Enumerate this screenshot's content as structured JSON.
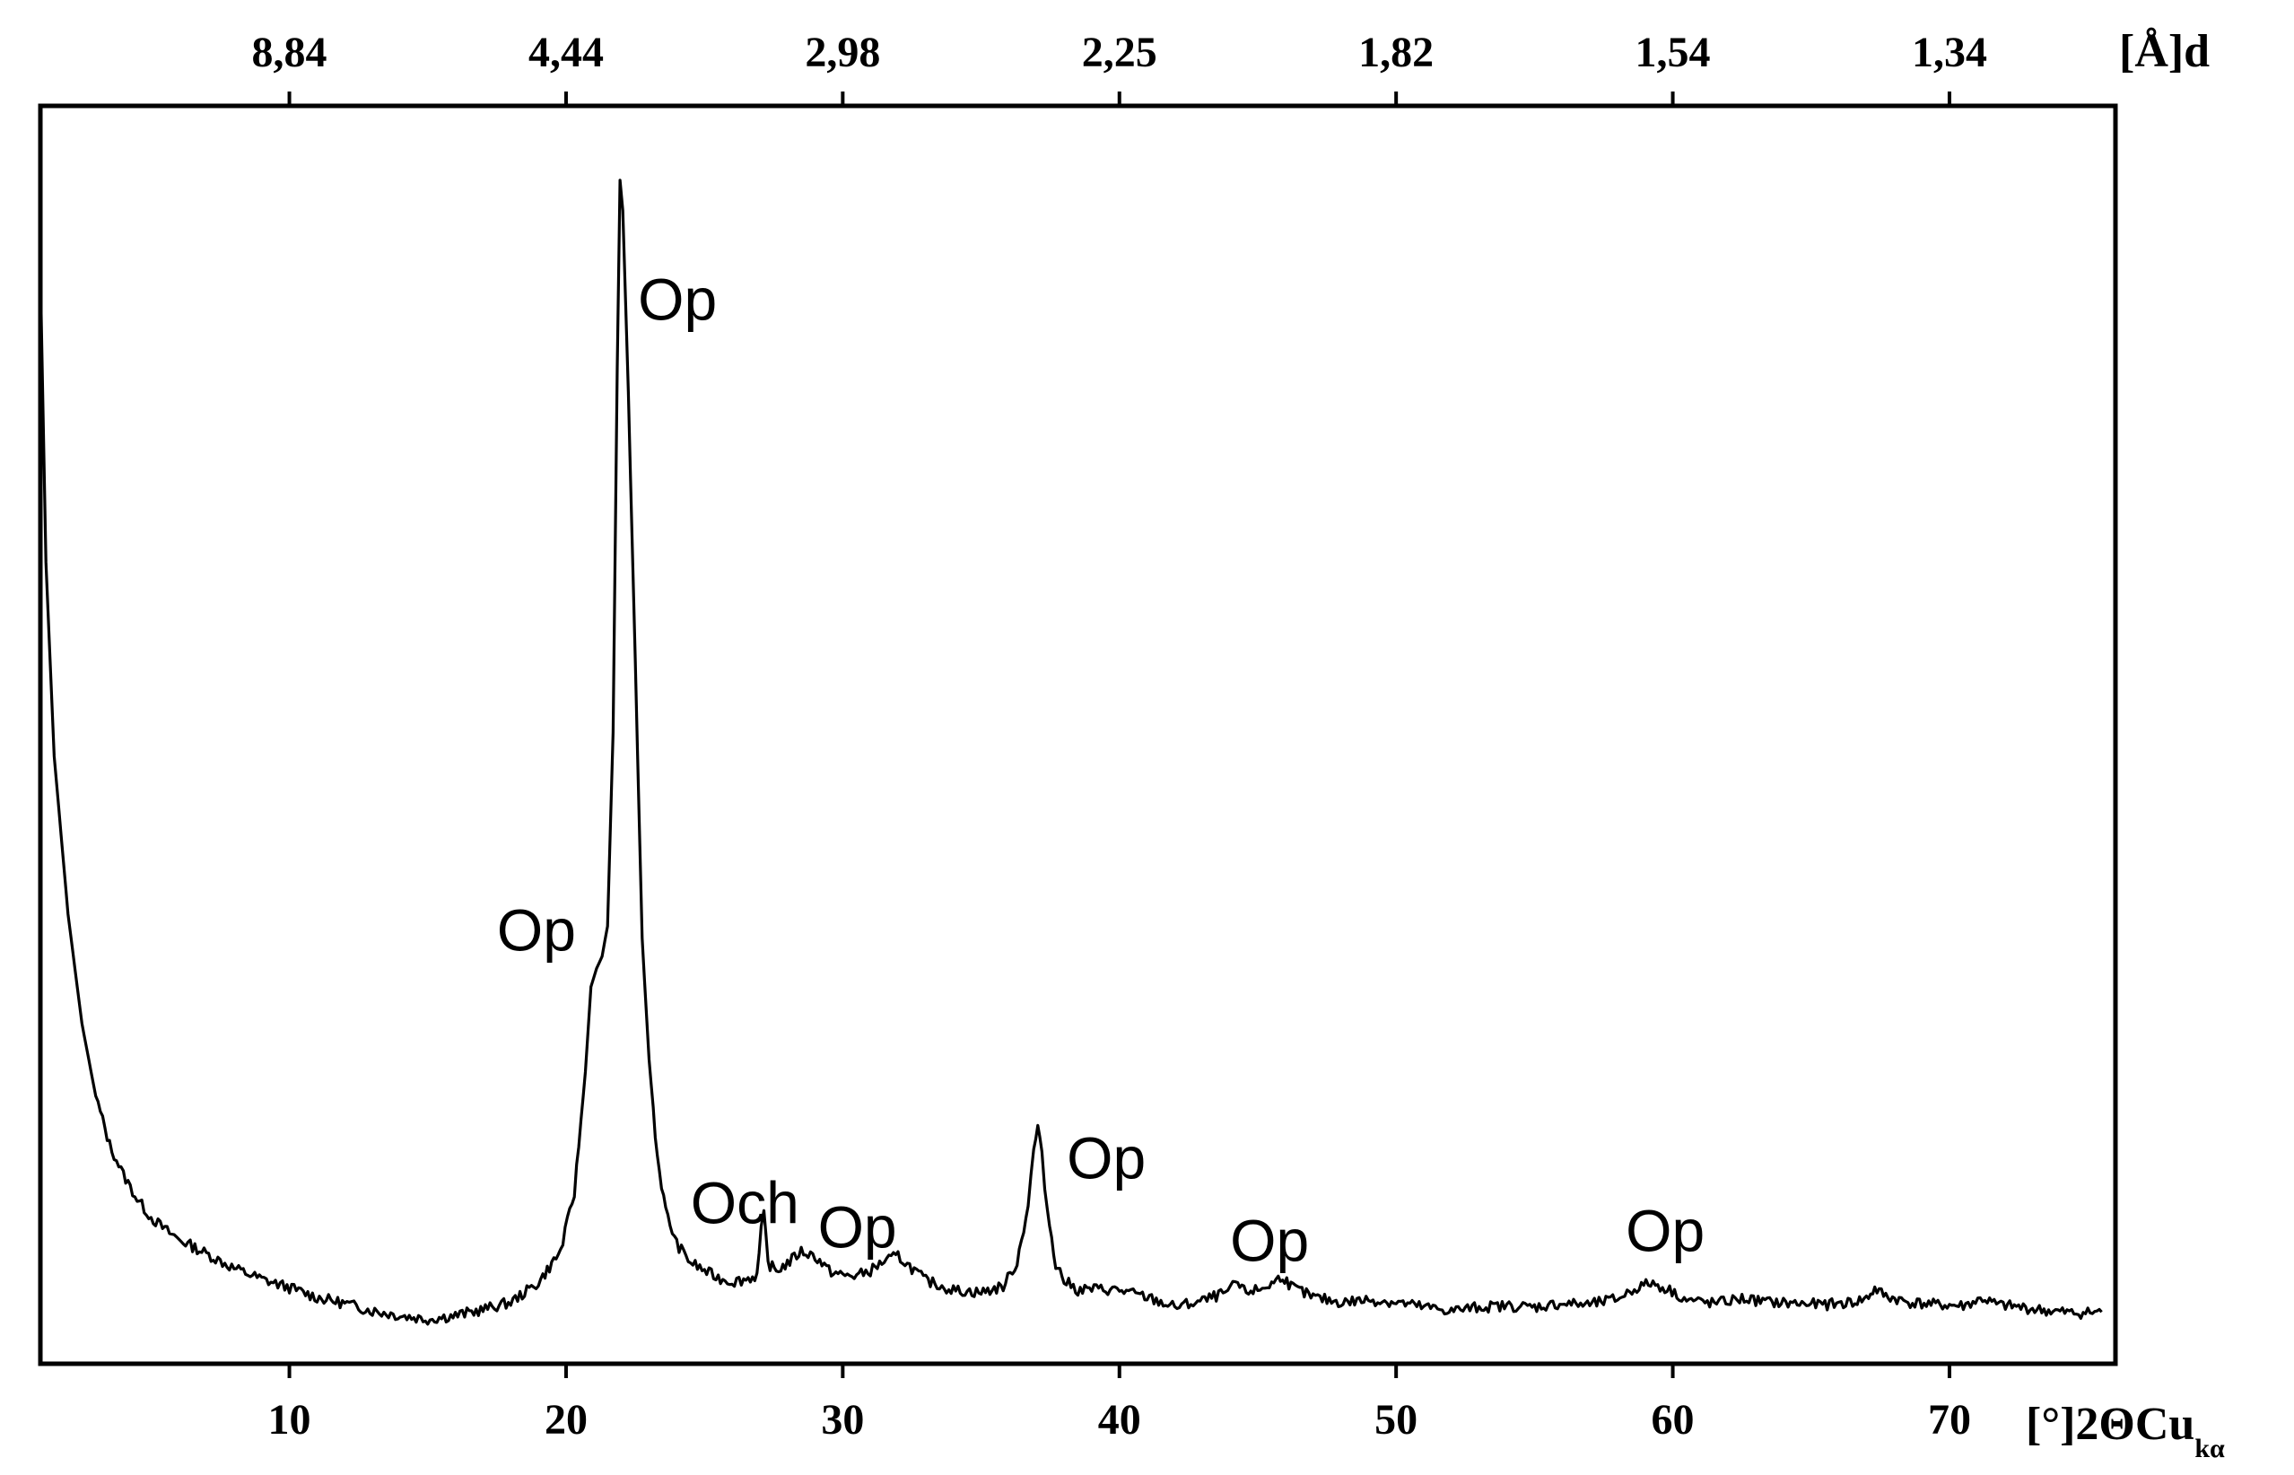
{
  "chart_data": {
    "type": "line",
    "xlabel": "[°]2ΘCu",
    "xlabel_sub": "kα",
    "x2label": "[Å]d",
    "xlim": [
      1,
      76
    ],
    "ylim": [
      0,
      100
    ],
    "x_ticks": [
      10,
      20,
      30,
      40,
      50,
      60,
      70
    ],
    "x_tick_labels": [
      "10",
      "20",
      "30",
      "40",
      "50",
      "60",
      "70"
    ],
    "top_ticks": [
      {
        "x": 10,
        "label": "8,84"
      },
      {
        "x": 20,
        "label": "4,44"
      },
      {
        "x": 30,
        "label": "2,98"
      },
      {
        "x": 40,
        "label": "2,25"
      },
      {
        "x": 50,
        "label": "1,82"
      },
      {
        "x": 60,
        "label": "1,54"
      },
      {
        "x": 70,
        "label": "1,34"
      }
    ],
    "y_ticks_shown": false,
    "grid": false,
    "legend": "none",
    "series": [
      {
        "color": "#000000",
        "points": [
          [
            1.0,
            88
          ],
          [
            1.2,
            64
          ],
          [
            1.5,
            48
          ],
          [
            2.0,
            35
          ],
          [
            2.5,
            26
          ],
          [
            3.0,
            20
          ],
          [
            3.5,
            16
          ],
          [
            4.0,
            13.5
          ],
          [
            4.5,
            11.5
          ],
          [
            5.0,
            10
          ],
          [
            5.5,
            9
          ],
          [
            6.0,
            8.2
          ],
          [
            7.0,
            7
          ],
          [
            8.0,
            5.8
          ],
          [
            9.0,
            4.9
          ],
          [
            10.0,
            4.2
          ],
          [
            11.0,
            3.4
          ],
          [
            12.0,
            2.9
          ],
          [
            13.0,
            2.3
          ],
          [
            14.0,
            1.9
          ],
          [
            15.0,
            1.6
          ],
          [
            16.0,
            1.9
          ],
          [
            17.0,
            2.4
          ],
          [
            18.0,
            3.0
          ],
          [
            19.0,
            4.6
          ],
          [
            19.8,
            7.2
          ],
          [
            20.3,
            12
          ],
          [
            20.7,
            22
          ],
          [
            20.9,
            29
          ],
          [
            21.1,
            30.5
          ],
          [
            21.3,
            31.5
          ],
          [
            21.5,
            34
          ],
          [
            21.7,
            50
          ],
          [
            21.85,
            80
          ],
          [
            21.95,
            95.5
          ],
          [
            22.05,
            93
          ],
          [
            22.25,
            78
          ],
          [
            22.5,
            56
          ],
          [
            22.75,
            33
          ],
          [
            23.0,
            23
          ],
          [
            23.3,
            15
          ],
          [
            23.6,
            10.5
          ],
          [
            24.0,
            7.8
          ],
          [
            24.5,
            6.3
          ],
          [
            25.0,
            5.6
          ],
          [
            25.5,
            5.0
          ],
          [
            26.0,
            4.7
          ],
          [
            26.5,
            4.9
          ],
          [
            26.9,
            5.2
          ],
          [
            27.05,
            8.8
          ],
          [
            27.15,
            10.2
          ],
          [
            27.3,
            6.2
          ],
          [
            27.6,
            5.6
          ],
          [
            28.0,
            6.2
          ],
          [
            28.5,
            7.2
          ],
          [
            29.0,
            6.8
          ],
          [
            29.5,
            5.6
          ],
          [
            30.0,
            5.2
          ],
          [
            30.5,
            5.2
          ],
          [
            31.0,
            5.6
          ],
          [
            31.5,
            6.4
          ],
          [
            32.0,
            6.8
          ],
          [
            32.5,
            5.8
          ],
          [
            33.0,
            4.8
          ],
          [
            34.0,
            4.0
          ],
          [
            35.0,
            3.8
          ],
          [
            35.8,
            4.3
          ],
          [
            36.3,
            6.3
          ],
          [
            36.7,
            11
          ],
          [
            36.9,
            15.5
          ],
          [
            37.05,
            17.5
          ],
          [
            37.2,
            15
          ],
          [
            37.4,
            10.5
          ],
          [
            37.7,
            6.2
          ],
          [
            38.0,
            4.8
          ],
          [
            38.5,
            4.0
          ],
          [
            39.0,
            4.1
          ],
          [
            40.0,
            4.0
          ],
          [
            41.0,
            3.4
          ],
          [
            42.0,
            2.6
          ],
          [
            43.0,
            3.1
          ],
          [
            44.0,
            3.9
          ],
          [
            44.2,
            4.7
          ],
          [
            44.5,
            3.9
          ],
          [
            45.0,
            4.0
          ],
          [
            45.5,
            4.5
          ],
          [
            45.9,
            5.2
          ],
          [
            46.2,
            4.3
          ],
          [
            47.0,
            3.4
          ],
          [
            48.0,
            3.0
          ],
          [
            49.0,
            3.2
          ],
          [
            50.0,
            3.0
          ],
          [
            51.0,
            2.6
          ],
          [
            52.0,
            2.3
          ],
          [
            53.0,
            2.6
          ],
          [
            54.0,
            2.7
          ],
          [
            55.0,
            2.6
          ],
          [
            56.0,
            2.9
          ],
          [
            57.0,
            2.8
          ],
          [
            58.0,
            3.3
          ],
          [
            58.7,
            4.2
          ],
          [
            59.2,
            4.6
          ],
          [
            59.8,
            4.1
          ],
          [
            60.5,
            3.2
          ],
          [
            61.5,
            2.9
          ],
          [
            62.5,
            3.3
          ],
          [
            63.5,
            3.0
          ],
          [
            64.5,
            2.9
          ],
          [
            65.5,
            2.8
          ],
          [
            66.5,
            3.0
          ],
          [
            67.0,
            3.3
          ],
          [
            67.3,
            4.1
          ],
          [
            67.7,
            3.5
          ],
          [
            68.5,
            3.0
          ],
          [
            69.5,
            2.8
          ],
          [
            70.5,
            2.7
          ],
          [
            71.2,
            3.3
          ],
          [
            71.7,
            2.8
          ],
          [
            72.5,
            2.6
          ],
          [
            73.5,
            2.3
          ],
          [
            74.5,
            2.1
          ],
          [
            75.5,
            2.2
          ]
        ]
      }
    ],
    "annotations": [
      {
        "text": "Op",
        "x": 22.6,
        "y": 84
      },
      {
        "text": "Op",
        "x": 17.5,
        "y": 32
      },
      {
        "text": "Och",
        "x": 24.5,
        "y": 9.5
      },
      {
        "text": "Op",
        "x": 29.1,
        "y": 7.5
      },
      {
        "text": "Op",
        "x": 38.1,
        "y": 13.2
      },
      {
        "text": "Op",
        "x": 44.0,
        "y": 6.4
      },
      {
        "text": "Op",
        "x": 58.3,
        "y": 7.2
      }
    ]
  }
}
